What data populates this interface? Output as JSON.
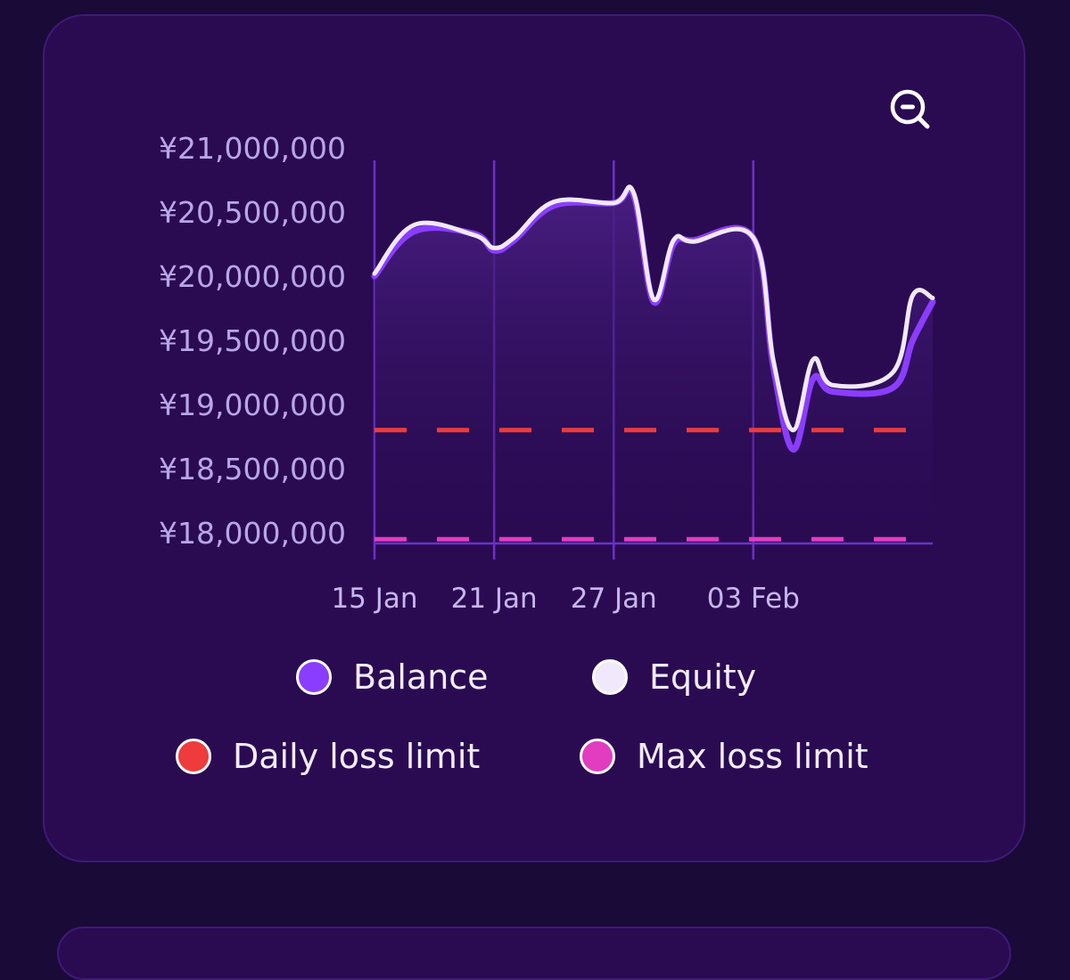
{
  "colors": {
    "balance": "#8b3dff",
    "equity": "#f1e9fb",
    "daily_loss_limit": "#ee3b3b",
    "max_loss_limit": "#e23cc0",
    "gridline": "#6a32c8"
  },
  "zoom_icon": "zoom-out-icon",
  "chart_data": {
    "type": "line",
    "currency": "¥",
    "y_ticks": [
      "¥21,000,000",
      "¥20,500,000",
      "¥20,000,000",
      "¥19,500,000",
      "¥19,000,000",
      "¥18,500,000",
      "¥18,000,000"
    ],
    "x_ticks": [
      "15 Jan",
      "21 Jan",
      "27 Jan",
      "03 Feb"
    ],
    "ylim": [
      18000000,
      21000000
    ],
    "grid": "vertical",
    "legend_position": "bottom",
    "series": [
      {
        "name": "Balance",
        "x": [
          "2025-01-15",
          "2025-01-17",
          "2025-01-20",
          "2025-01-21",
          "2025-01-22",
          "2025-01-24",
          "2025-01-27",
          "2025-01-28",
          "2025-01-29",
          "2025-01-30",
          "2025-01-31",
          "2025-02-03",
          "2025-02-04",
          "2025-02-05",
          "2025-02-06",
          "2025-02-07",
          "2025-02-10",
          "2025-02-11",
          "2025-02-12"
        ],
        "values": [
          20000000,
          20350000,
          20330000,
          20200000,
          20280000,
          20550000,
          20570000,
          20630000,
          19800000,
          20250000,
          20280000,
          20300000,
          19300000,
          18650000,
          19200000,
          19100000,
          19130000,
          19500000,
          19800000
        ]
      },
      {
        "name": "Equity",
        "x": [
          "2025-01-15",
          "2025-01-17",
          "2025-01-20",
          "2025-01-21",
          "2025-01-22",
          "2025-01-24",
          "2025-01-27",
          "2025-01-28",
          "2025-01-29",
          "2025-01-30",
          "2025-01-31",
          "2025-02-03",
          "2025-02-04",
          "2025-02-05",
          "2025-02-06",
          "2025-02-07",
          "2025-02-10",
          "2025-02-11",
          "2025-02-12"
        ],
        "values": [
          20020000,
          20400000,
          20320000,
          20220000,
          20300000,
          20580000,
          20570000,
          20650000,
          19820000,
          20280000,
          20270000,
          20300000,
          19350000,
          18800000,
          19350000,
          19150000,
          19250000,
          19850000,
          19830000
        ]
      }
    ],
    "reference_lines": [
      {
        "name": "Daily loss limit",
        "value": 18800000
      },
      {
        "name": "Max loss limit",
        "value": 17950000
      }
    ]
  }
}
